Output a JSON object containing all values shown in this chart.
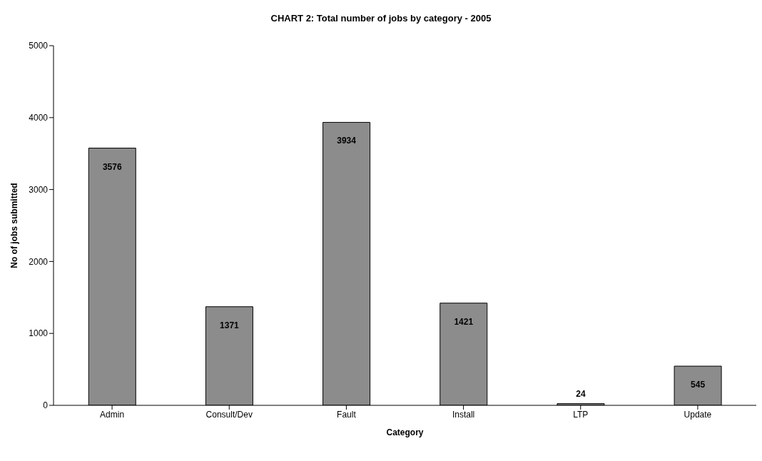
{
  "chart_data": {
    "type": "bar",
    "title": "CHART 2: Total number of jobs by category - 2005",
    "xlabel": "Category",
    "ylabel": "No of jobs submitted",
    "categories": [
      "Admin",
      "Consult/Dev",
      "Fault",
      "Install",
      "LTP",
      "Update"
    ],
    "values": [
      3576,
      1371,
      3934,
      1421,
      24,
      545
    ],
    "color": "#8c8c8c",
    "ylim": [
      0,
      5000
    ],
    "yticks": [
      0,
      1000,
      2000,
      3000,
      4000,
      5000
    ],
    "grid": false,
    "data_labels": true
  }
}
